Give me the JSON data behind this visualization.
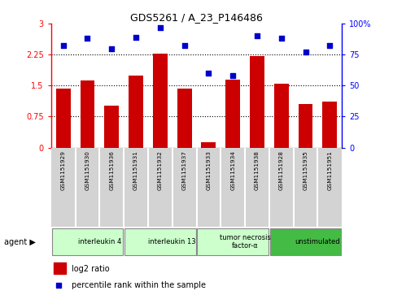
{
  "title": "GDS5261 / A_23_P146486",
  "samples": [
    "GSM1151929",
    "GSM1151930",
    "GSM1151936",
    "GSM1151931",
    "GSM1151932",
    "GSM1151937",
    "GSM1151933",
    "GSM1151934",
    "GSM1151938",
    "GSM1151928",
    "GSM1151935",
    "GSM1151951"
  ],
  "log2_ratio": [
    1.43,
    1.62,
    1.02,
    1.75,
    2.27,
    1.43,
    0.12,
    1.65,
    2.22,
    1.55,
    1.05,
    1.12
  ],
  "percentile": [
    82,
    88,
    80,
    89,
    97,
    82,
    60,
    58,
    90,
    88,
    77,
    82
  ],
  "agents": [
    {
      "label": "interleukin 4",
      "start": 0,
      "end": 3,
      "color": "#ccffcc"
    },
    {
      "label": "interleukin 13",
      "start": 3,
      "end": 6,
      "color": "#ccffcc"
    },
    {
      "label": "tumor necrosis\nfactor-α",
      "start": 6,
      "end": 9,
      "color": "#ccffcc"
    },
    {
      "label": "unstimulated",
      "start": 9,
      "end": 12,
      "color": "#44bb44"
    }
  ],
  "bar_color": "#cc0000",
  "dot_color": "#0000cc",
  "ylim_left": [
    0,
    3
  ],
  "ylim_right": [
    0,
    100
  ],
  "yticks_left": [
    0,
    0.75,
    1.5,
    2.25,
    3
  ],
  "yticks_right": [
    0,
    25,
    50,
    75,
    100
  ],
  "ytick_labels_left": [
    "0",
    "0.75",
    "1.5",
    "2.25",
    "3"
  ],
  "ytick_labels_right": [
    "0",
    "25",
    "50",
    "75",
    "100%"
  ],
  "legend_bar_label": "log2 ratio",
  "legend_dot_label": "percentile rank within the sample",
  "agent_label": "agent"
}
